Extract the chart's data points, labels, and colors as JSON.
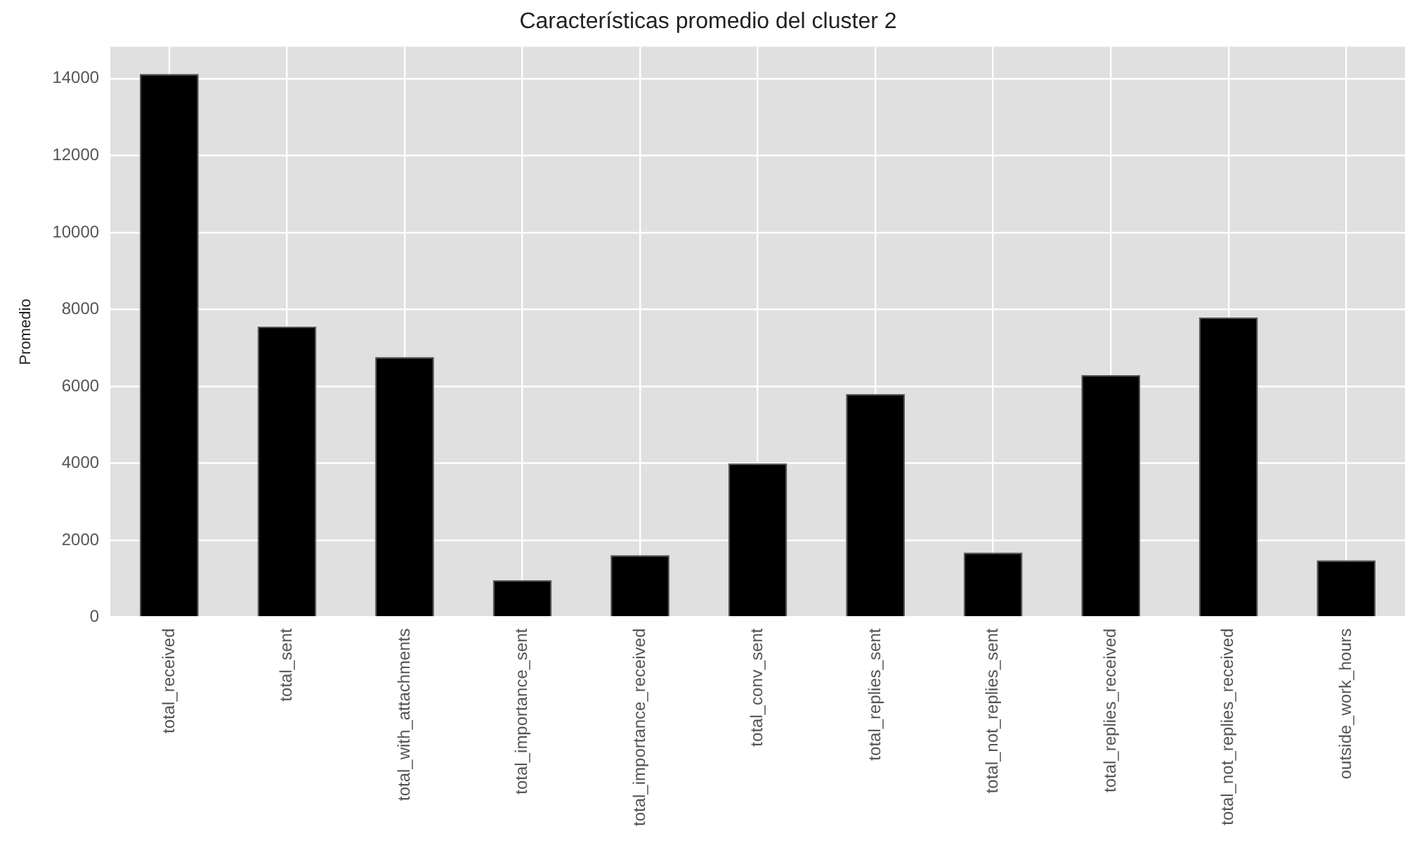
{
  "chart_data": {
    "type": "bar",
    "title": "Características promedio del cluster 2",
    "ylabel": "Promedio",
    "categories": [
      "total_received",
      "total_sent",
      "total_with_attachments",
      "total_importance_sent",
      "total_importance_received",
      "total_conv_sent",
      "total_replies_sent",
      "total_not_replies_sent",
      "total_replies_received",
      "total_not_replies_received",
      "outside_work_hours"
    ],
    "values": [
      14120,
      7550,
      6760,
      960,
      1610,
      4000,
      5800,
      1680,
      6290,
      7790,
      1480
    ],
    "color": "#000000",
    "ylim": [
      0,
      14830
    ],
    "yticks": [
      0,
      2000,
      4000,
      6000,
      8000,
      10000,
      12000,
      14000
    ],
    "grid": true,
    "legend": false
  }
}
